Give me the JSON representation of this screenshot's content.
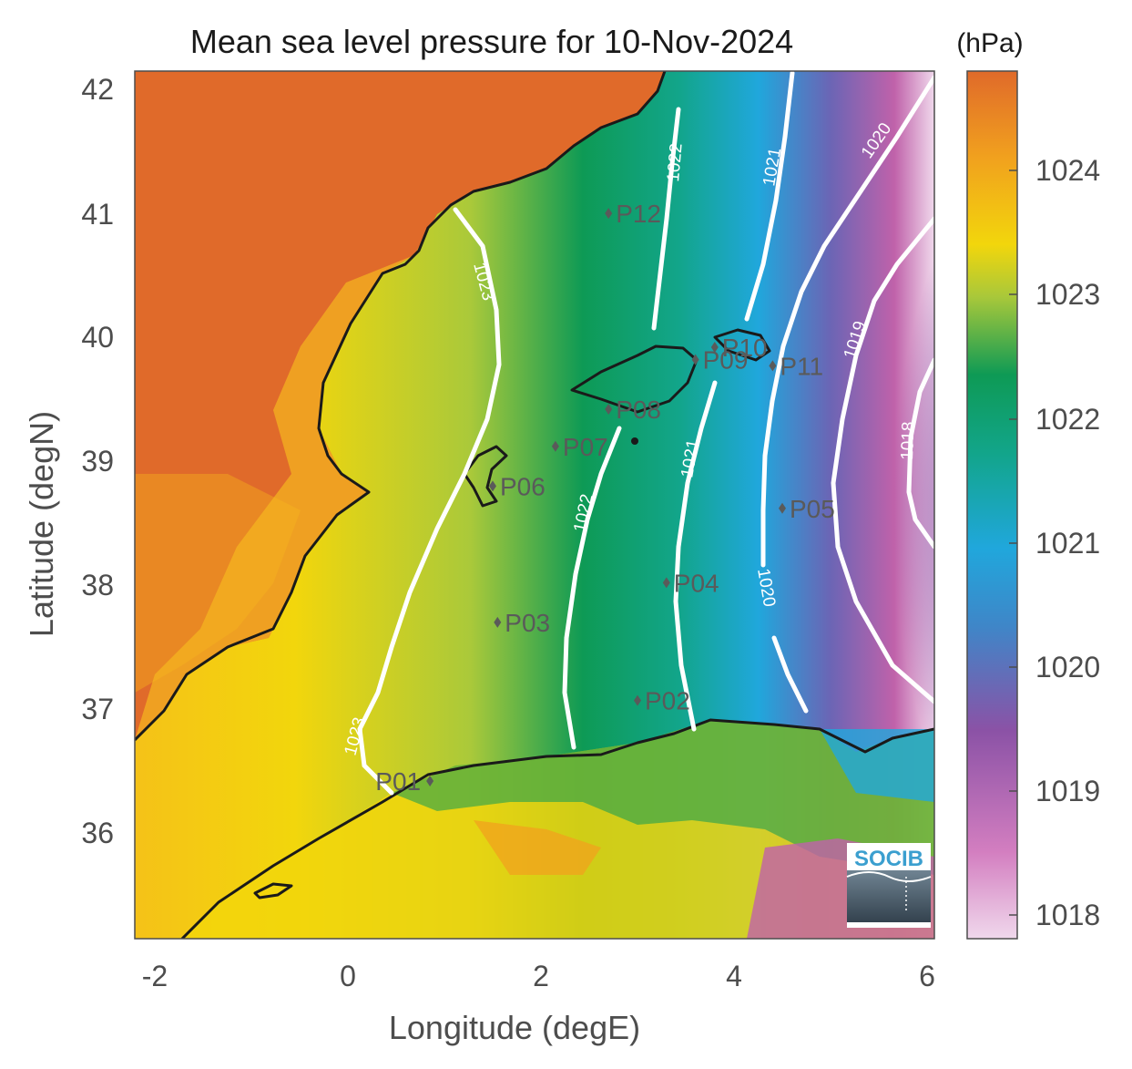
{
  "title": "Mean sea level pressure for 10-Nov-2024",
  "axes": {
    "xlabel": "Longitude (degE)",
    "ylabel": "Latitude (degN)",
    "xticks": [
      "-2",
      "0",
      "2",
      "4",
      "6"
    ],
    "yticks": [
      "42",
      "41",
      "40",
      "39",
      "38",
      "37",
      "36"
    ]
  },
  "colorbar": {
    "unit": "(hPa)",
    "ticks": [
      "1024",
      "1023",
      "1022",
      "1021",
      "1020",
      "1019",
      "1018"
    ],
    "range": [
      1017.8,
      1024.8
    ]
  },
  "isobars": [
    {
      "label": "1023"
    },
    {
      "label": "1022"
    },
    {
      "label": "1021"
    },
    {
      "label": "1020"
    },
    {
      "label": "1019"
    },
    {
      "label": "1018"
    }
  ],
  "isobar_labels": [
    "1023",
    "1023",
    "1022",
    "1022",
    "1021",
    "1021",
    "1020",
    "1020",
    "1019",
    "1018"
  ],
  "points": [
    {
      "name": "P01",
      "lon": 0.85,
      "lat": 36.5
    },
    {
      "name": "P02",
      "lon": 3.0,
      "lat": 37.15
    },
    {
      "name": "P03",
      "lon": 1.55,
      "lat": 37.78
    },
    {
      "name": "P04",
      "lon": 3.3,
      "lat": 38.1
    },
    {
      "name": "P05",
      "lon": 4.5,
      "lat": 38.7
    },
    {
      "name": "P06",
      "lon": 1.5,
      "lat": 38.88
    },
    {
      "name": "P07",
      "lon": 2.15,
      "lat": 39.2
    },
    {
      "name": "P08",
      "lon": 2.7,
      "lat": 39.5
    },
    {
      "name": "P09",
      "lon": 3.6,
      "lat": 39.9
    },
    {
      "name": "P10",
      "lon": 3.8,
      "lat": 40.0
    },
    {
      "name": "P11",
      "lon": 4.4,
      "lat": 39.85
    },
    {
      "name": "P12",
      "lon": 2.7,
      "lat": 41.08
    }
  ],
  "colors": {
    "orange": "#e06a2a",
    "yellow": "#f2d60c",
    "green": "#0e9a55",
    "blue": "#20a7dc",
    "purple": "#8b52a6",
    "pink": "#f0d8ec"
  },
  "logo": {
    "text": "SOCIB"
  }
}
